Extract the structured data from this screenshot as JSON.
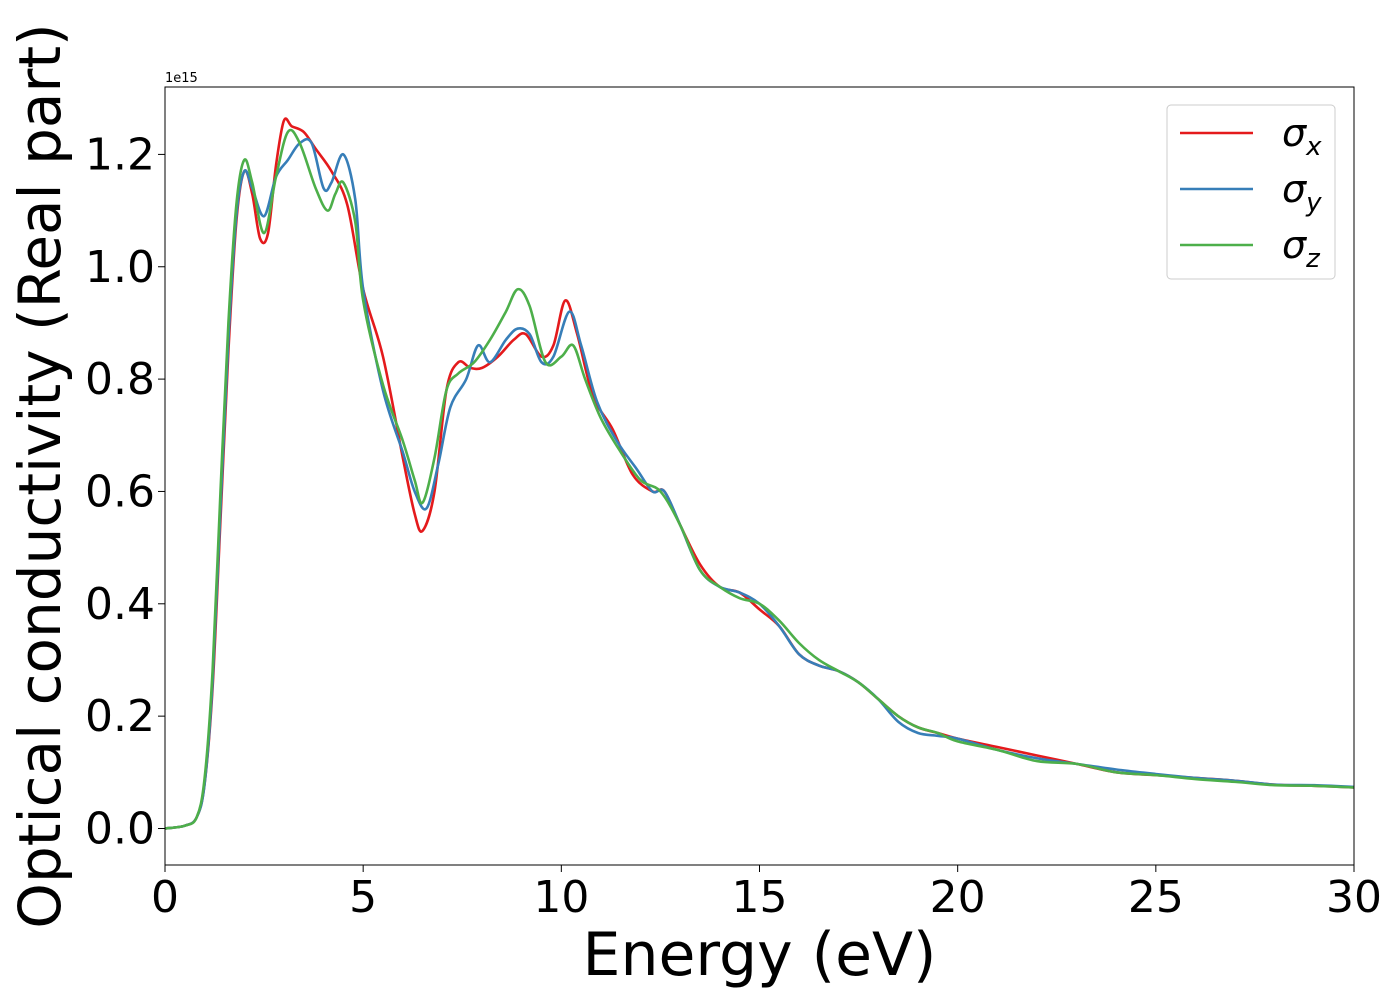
{
  "chart_data": {
    "type": "line",
    "title": "",
    "xlabel": "Energy (eV)",
    "ylabel": "Optical conductivity (Real part)",
    "y_offset_label": "1e15",
    "xlim": [
      0,
      30
    ],
    "ylim": [
      -0.065,
      1.32
    ],
    "xticks": [
      0,
      5,
      10,
      15,
      20,
      25,
      30
    ],
    "xtick_labels": [
      "0",
      "5",
      "10",
      "15",
      "20",
      "25",
      "30"
    ],
    "yticks": [
      0.0,
      0.2,
      0.4,
      0.6,
      0.8,
      1.0,
      1.2
    ],
    "ytick_labels": [
      "0.0",
      "0.2",
      "0.4",
      "0.6",
      "0.8",
      "1.0",
      "1.2"
    ],
    "grid": false,
    "legend_position": "top-right",
    "series": [
      {
        "name": "σx",
        "symbol": "σ",
        "subscript": "x",
        "color": "#e41a1c",
        "points": [
          [
            0,
            0.0
          ],
          [
            0.5,
            0.005
          ],
          [
            0.8,
            0.02
          ],
          [
            1.0,
            0.08
          ],
          [
            1.2,
            0.25
          ],
          [
            1.4,
            0.55
          ],
          [
            1.6,
            0.85
          ],
          [
            1.8,
            1.08
          ],
          [
            2.0,
            1.17
          ],
          [
            2.2,
            1.13
          ],
          [
            2.4,
            1.05
          ],
          [
            2.6,
            1.06
          ],
          [
            2.8,
            1.18
          ],
          [
            3.0,
            1.26
          ],
          [
            3.2,
            1.25
          ],
          [
            3.5,
            1.24
          ],
          [
            3.8,
            1.21
          ],
          [
            4.2,
            1.17
          ],
          [
            4.6,
            1.11
          ],
          [
            5.0,
            0.96
          ],
          [
            5.5,
            0.84
          ],
          [
            6.0,
            0.66
          ],
          [
            6.3,
            0.56
          ],
          [
            6.5,
            0.53
          ],
          [
            6.8,
            0.6
          ],
          [
            7.1,
            0.78
          ],
          [
            7.4,
            0.83
          ],
          [
            7.7,
            0.82
          ],
          [
            8.0,
            0.82
          ],
          [
            8.4,
            0.84
          ],
          [
            8.8,
            0.87
          ],
          [
            9.1,
            0.88
          ],
          [
            9.5,
            0.84
          ],
          [
            9.8,
            0.86
          ],
          [
            10.1,
            0.94
          ],
          [
            10.4,
            0.88
          ],
          [
            10.8,
            0.77
          ],
          [
            11.3,
            0.71
          ],
          [
            11.8,
            0.63
          ],
          [
            12.3,
            0.6
          ],
          [
            12.6,
            0.6
          ],
          [
            13.0,
            0.54
          ],
          [
            13.5,
            0.47
          ],
          [
            14.0,
            0.43
          ],
          [
            14.5,
            0.42
          ],
          [
            15.0,
            0.39
          ],
          [
            15.5,
            0.36
          ],
          [
            16.0,
            0.31
          ],
          [
            16.5,
            0.29
          ],
          [
            17.0,
            0.28
          ],
          [
            17.5,
            0.26
          ],
          [
            18.0,
            0.23
          ],
          [
            18.5,
            0.2
          ],
          [
            19.0,
            0.18
          ],
          [
            19.5,
            0.17
          ],
          [
            20.0,
            0.16
          ],
          [
            21.0,
            0.145
          ],
          [
            22.0,
            0.13
          ],
          [
            23.0,
            0.115
          ],
          [
            24.0,
            0.1
          ],
          [
            25.0,
            0.095
          ],
          [
            26.0,
            0.09
          ],
          [
            27.0,
            0.085
          ],
          [
            28.0,
            0.078
          ],
          [
            29.0,
            0.076
          ],
          [
            30.0,
            0.073
          ]
        ]
      },
      {
        "name": "σy",
        "symbol": "σ",
        "subscript": "y",
        "color": "#377eb8",
        "points": [
          [
            0,
            0.0
          ],
          [
            0.5,
            0.005
          ],
          [
            0.8,
            0.02
          ],
          [
            1.0,
            0.08
          ],
          [
            1.2,
            0.26
          ],
          [
            1.4,
            0.57
          ],
          [
            1.6,
            0.87
          ],
          [
            1.8,
            1.09
          ],
          [
            2.0,
            1.17
          ],
          [
            2.2,
            1.14
          ],
          [
            2.5,
            1.09
          ],
          [
            2.8,
            1.16
          ],
          [
            3.1,
            1.19
          ],
          [
            3.4,
            1.22
          ],
          [
            3.7,
            1.22
          ],
          [
            4.0,
            1.14
          ],
          [
            4.2,
            1.15
          ],
          [
            4.5,
            1.2
          ],
          [
            4.8,
            1.12
          ],
          [
            5.0,
            0.96
          ],
          [
            5.5,
            0.78
          ],
          [
            6.0,
            0.67
          ],
          [
            6.3,
            0.6
          ],
          [
            6.6,
            0.57
          ],
          [
            6.9,
            0.65
          ],
          [
            7.2,
            0.75
          ],
          [
            7.6,
            0.8
          ],
          [
            7.9,
            0.86
          ],
          [
            8.2,
            0.83
          ],
          [
            8.6,
            0.87
          ],
          [
            8.9,
            0.89
          ],
          [
            9.2,
            0.88
          ],
          [
            9.5,
            0.83
          ],
          [
            9.8,
            0.84
          ],
          [
            10.2,
            0.92
          ],
          [
            10.5,
            0.86
          ],
          [
            10.9,
            0.76
          ],
          [
            11.4,
            0.69
          ],
          [
            11.9,
            0.64
          ],
          [
            12.3,
            0.6
          ],
          [
            12.6,
            0.6
          ],
          [
            13.0,
            0.54
          ],
          [
            13.5,
            0.46
          ],
          [
            14.0,
            0.43
          ],
          [
            14.5,
            0.42
          ],
          [
            15.0,
            0.4
          ],
          [
            15.5,
            0.36
          ],
          [
            16.0,
            0.31
          ],
          [
            16.5,
            0.29
          ],
          [
            17.0,
            0.28
          ],
          [
            17.5,
            0.26
          ],
          [
            18.0,
            0.23
          ],
          [
            18.5,
            0.19
          ],
          [
            19.0,
            0.17
          ],
          [
            19.5,
            0.165
          ],
          [
            20.0,
            0.16
          ],
          [
            21.0,
            0.14
          ],
          [
            22.0,
            0.125
          ],
          [
            23.0,
            0.115
          ],
          [
            24.0,
            0.105
          ],
          [
            25.0,
            0.097
          ],
          [
            26.0,
            0.09
          ],
          [
            27.0,
            0.085
          ],
          [
            28.0,
            0.078
          ],
          [
            29.0,
            0.077
          ],
          [
            30.0,
            0.074
          ]
        ]
      },
      {
        "name": "σz",
        "symbol": "σ",
        "subscript": "z",
        "color": "#4daf4a",
        "points": [
          [
            0,
            0.0
          ],
          [
            0.5,
            0.005
          ],
          [
            0.8,
            0.02
          ],
          [
            1.0,
            0.09
          ],
          [
            1.2,
            0.28
          ],
          [
            1.4,
            0.6
          ],
          [
            1.6,
            0.9
          ],
          [
            1.8,
            1.11
          ],
          [
            2.0,
            1.19
          ],
          [
            2.2,
            1.15
          ],
          [
            2.5,
            1.06
          ],
          [
            2.8,
            1.16
          ],
          [
            3.1,
            1.24
          ],
          [
            3.4,
            1.22
          ],
          [
            3.8,
            1.14
          ],
          [
            4.1,
            1.1
          ],
          [
            4.3,
            1.13
          ],
          [
            4.5,
            1.15
          ],
          [
            4.8,
            1.08
          ],
          [
            5.0,
            0.94
          ],
          [
            5.5,
            0.79
          ],
          [
            6.0,
            0.69
          ],
          [
            6.3,
            0.62
          ],
          [
            6.5,
            0.58
          ],
          [
            6.8,
            0.66
          ],
          [
            7.1,
            0.78
          ],
          [
            7.4,
            0.81
          ],
          [
            7.8,
            0.83
          ],
          [
            8.2,
            0.87
          ],
          [
            8.6,
            0.92
          ],
          [
            8.9,
            0.96
          ],
          [
            9.2,
            0.93
          ],
          [
            9.6,
            0.83
          ],
          [
            10.0,
            0.84
          ],
          [
            10.3,
            0.86
          ],
          [
            10.6,
            0.8
          ],
          [
            11.0,
            0.73
          ],
          [
            11.5,
            0.67
          ],
          [
            12.0,
            0.62
          ],
          [
            12.5,
            0.6
          ],
          [
            13.0,
            0.54
          ],
          [
            13.5,
            0.46
          ],
          [
            14.0,
            0.43
          ],
          [
            14.5,
            0.41
          ],
          [
            15.0,
            0.4
          ],
          [
            15.5,
            0.37
          ],
          [
            16.0,
            0.33
          ],
          [
            16.5,
            0.3
          ],
          [
            17.0,
            0.28
          ],
          [
            17.5,
            0.26
          ],
          [
            18.0,
            0.23
          ],
          [
            18.5,
            0.2
          ],
          [
            19.0,
            0.18
          ],
          [
            19.5,
            0.17
          ],
          [
            20.0,
            0.155
          ],
          [
            21.0,
            0.14
          ],
          [
            22.0,
            0.12
          ],
          [
            23.0,
            0.115
          ],
          [
            24.0,
            0.1
          ],
          [
            25.0,
            0.095
          ],
          [
            26.0,
            0.088
          ],
          [
            27.0,
            0.083
          ],
          [
            28.0,
            0.077
          ],
          [
            29.0,
            0.076
          ],
          [
            30.0,
            0.073
          ]
        ]
      }
    ]
  }
}
